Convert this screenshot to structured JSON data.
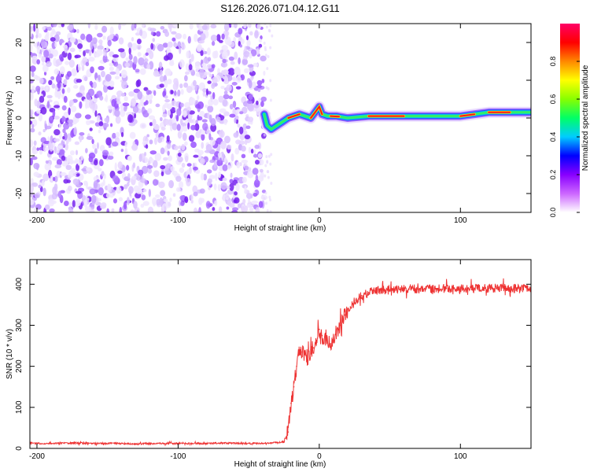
{
  "title": "S126.2026.071.04.12.G11",
  "chart_data": [
    {
      "type": "heatmap",
      "xlabel": "Height of straight line (km)",
      "ylabel": "Frequency (Hz)",
      "xlim": [
        -205,
        150
      ],
      "ylim": [
        -25,
        25
      ],
      "xticks": [
        -200,
        -100,
        0,
        100
      ],
      "yticks": [
        -20,
        -10,
        0,
        10,
        20
      ],
      "grid": false,
      "noise_region_x": [
        -205,
        -39
      ],
      "noise_color": "#7722ee",
      "ridge": [
        {
          "x": -39,
          "y": 1
        },
        {
          "x": -37,
          "y": -2
        },
        {
          "x": -34,
          "y": -3
        },
        {
          "x": -30,
          "y": -2
        },
        {
          "x": -26,
          "y": -1
        },
        {
          "x": -22,
          "y": 0
        },
        {
          "x": -18,
          "y": 0.5
        },
        {
          "x": -14,
          "y": 1
        },
        {
          "x": -10,
          "y": 0.5
        },
        {
          "x": -6,
          "y": 0
        },
        {
          "x": -3,
          "y": 1.5
        },
        {
          "x": 0,
          "y": 3
        },
        {
          "x": 2,
          "y": 1
        },
        {
          "x": 6,
          "y": 0.5
        },
        {
          "x": 12,
          "y": 0.5
        },
        {
          "x": 20,
          "y": 0
        },
        {
          "x": 35,
          "y": 0.5
        },
        {
          "x": 60,
          "y": 0.5
        },
        {
          "x": 90,
          "y": 0.5
        },
        {
          "x": 100,
          "y": 0.5
        },
        {
          "x": 110,
          "y": 1
        },
        {
          "x": 120,
          "y": 1.5
        },
        {
          "x": 135,
          "y": 1.5
        },
        {
          "x": 150,
          "y": 1.5
        }
      ],
      "colorbar": {
        "label": "Normalized spectral amplitude",
        "range": [
          0,
          1
        ],
        "ticks": [
          0.0,
          0.2,
          0.4,
          0.6,
          0.8
        ],
        "tick_labels": [
          "0.0",
          "0.2",
          "0.4",
          "0.6",
          "0.8"
        ],
        "colors": [
          "#ffffff",
          "#cc66ff",
          "#8800ff",
          "#0000ff",
          "#00ccff",
          "#00ff66",
          "#88ff00",
          "#ffff00",
          "#ff8800",
          "#ff0000",
          "#ff0066"
        ]
      }
    },
    {
      "type": "line",
      "xlabel": "Height of straight line (km)",
      "ylabel": "SNR (10 * v/v)",
      "xlim": [
        -205,
        150
      ],
      "ylim": [
        0,
        460
      ],
      "xticks": [
        -200,
        -100,
        0,
        100
      ],
      "yticks": [
        0,
        100,
        200,
        300,
        400
      ],
      "grid": false,
      "series": [
        {
          "color": "#ee3333",
          "x": [
            -205,
            -190,
            -175,
            -160,
            -145,
            -130,
            -115,
            -100,
            -85,
            -70,
            -55,
            -40,
            -30,
            -25,
            -22,
            -20,
            -18,
            -16,
            -14,
            -12,
            -10,
            -8,
            -6,
            -4,
            -2,
            0,
            2,
            5,
            8,
            12,
            15,
            18,
            22,
            26,
            30,
            35,
            40,
            50,
            60,
            70,
            80,
            90,
            100,
            110,
            120,
            130,
            140,
            150
          ],
          "y": [
            12,
            12,
            13,
            12,
            12,
            11,
            12,
            12,
            12,
            13,
            12,
            12,
            14,
            16,
            40,
            110,
            150,
            200,
            240,
            235,
            230,
            215,
            240,
            245,
            255,
            290,
            275,
            265,
            255,
            285,
            300,
            325,
            345,
            362,
            372,
            380,
            385,
            386,
            388,
            388,
            389,
            390,
            390,
            390,
            390,
            391,
            390,
            392
          ]
        }
      ]
    }
  ]
}
